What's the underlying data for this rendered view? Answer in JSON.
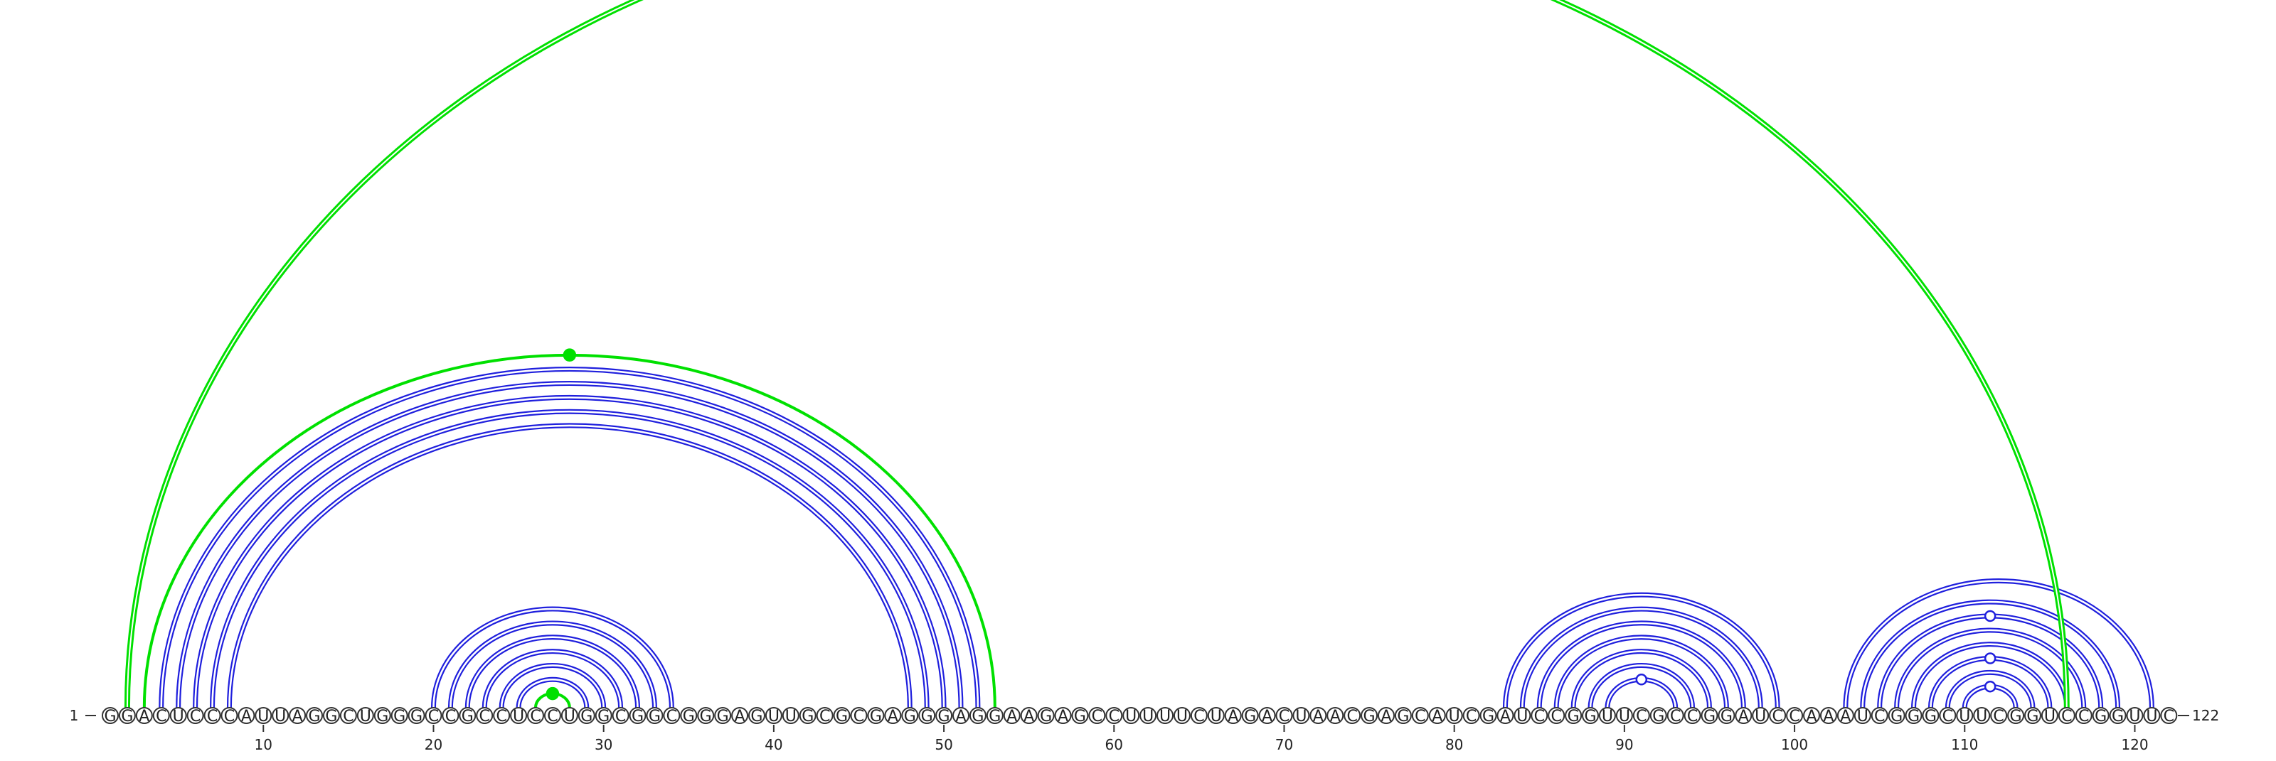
{
  "diagram": {
    "type": "arc-diagram",
    "sequence": "GGACUCCCAUUAGGCUGGGCCGCCUCCUGGCGGCGGGAGUUGCGCGAGGGAGGAAGAGCCUUUUCUAGACUAACGAGCAUCGAUCCGGUUCGCCGGAUCCAAAUCGGGCUUCGGUCCGGUUC",
    "start_label": "1",
    "end_label": "122",
    "tick_labels": [
      "10",
      "20",
      "30",
      "40",
      "50",
      "60",
      "70",
      "80",
      "90",
      "100",
      "110",
      "120"
    ],
    "colors": {
      "pair": "#1f1fdd",
      "pseudoknot": "#00e000",
      "nucleotide_outline": "#333333"
    },
    "pairs": [
      {
        "i": 4,
        "j": 52
      },
      {
        "i": 5,
        "j": 51
      },
      {
        "i": 6,
        "j": 50
      },
      {
        "i": 7,
        "j": 49
      },
      {
        "i": 8,
        "j": 48
      },
      {
        "i": 20,
        "j": 34
      },
      {
        "i": 21,
        "j": 33
      },
      {
        "i": 22,
        "j": 32
      },
      {
        "i": 23,
        "j": 31
      },
      {
        "i": 24,
        "j": 30
      },
      {
        "i": 25,
        "j": 29
      },
      {
        "i": 83,
        "j": 99
      },
      {
        "i": 84,
        "j": 98
      },
      {
        "i": 85,
        "j": 97
      },
      {
        "i": 86,
        "j": 96
      },
      {
        "i": 87,
        "j": 95
      },
      {
        "i": 88,
        "j": 94
      },
      {
        "i": 89,
        "j": 93
      },
      {
        "i": 103,
        "j": 121
      },
      {
        "i": 104,
        "j": 119
      },
      {
        "i": 105,
        "j": 118
      },
      {
        "i": 106,
        "j": 117
      },
      {
        "i": 107,
        "j": 116
      },
      {
        "i": 108,
        "j": 115
      },
      {
        "i": 109,
        "j": 114
      },
      {
        "i": 110,
        "j": 113
      }
    ],
    "pseudoknots": [
      {
        "i": 2,
        "j": 116
      },
      {
        "i": 3,
        "j": 53
      },
      {
        "i": 26,
        "j": 28
      }
    ],
    "markers": [
      {
        "pair": "3-53",
        "kind": "filled",
        "color": "#00e000"
      },
      {
        "pair": "26-28",
        "kind": "filled",
        "color": "#00e000"
      },
      {
        "pair": "89-93",
        "kind": "open",
        "color": "#1f1fdd"
      },
      {
        "pair": "110-113",
        "kind": "open",
        "color": "#1f1fdd"
      },
      {
        "pair": "108-115",
        "kind": "open",
        "color": "#1f1fdd"
      },
      {
        "pair": "105-118",
        "kind": "open",
        "color": "#1f1fdd"
      }
    ]
  }
}
